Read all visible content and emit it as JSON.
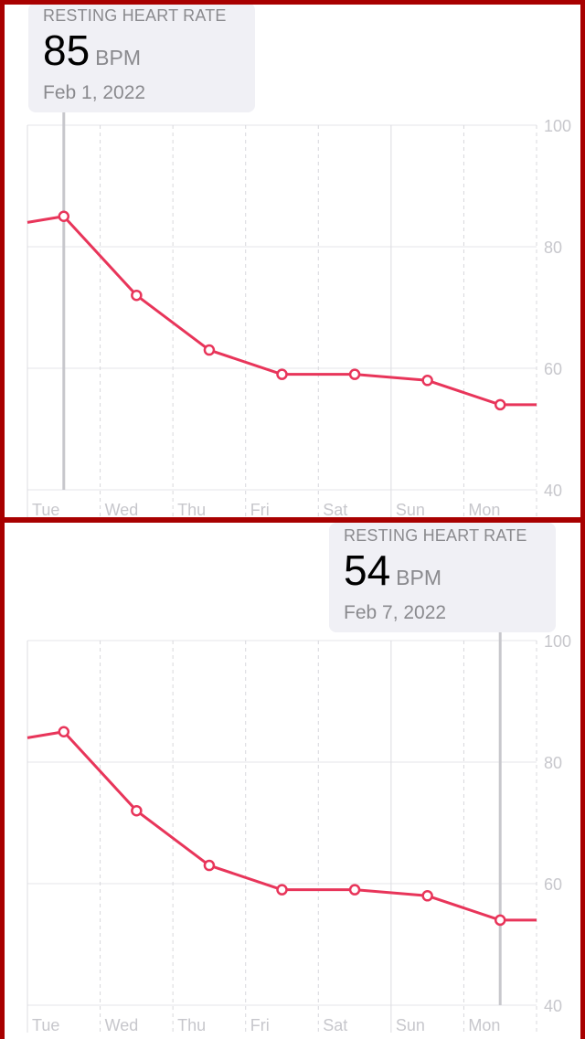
{
  "colors": {
    "line": "#e8355a",
    "grid": "#e5e5ea",
    "selection": "#c7c7cc",
    "frame": "#a80000",
    "callout_bg": "#f0f0f5"
  },
  "panels": [
    {
      "callout": {
        "title": "RESTING HEART RATE",
        "value": "85",
        "unit": "BPM",
        "date": "Feb 1, 2022"
      },
      "selected_index": 0
    },
    {
      "callout": {
        "title": "RESTING HEART RATE",
        "value": "54",
        "unit": "BPM",
        "date": "Feb 7, 2022"
      },
      "selected_index": 6
    }
  ],
  "chart_data": {
    "type": "line",
    "categories": [
      "Tue",
      "Wed",
      "Thu",
      "Fri",
      "Sat",
      "Sun",
      "Mon"
    ],
    "values": [
      85,
      72,
      63,
      59,
      59,
      58,
      54
    ],
    "edge_values": {
      "left": 84,
      "right": 54
    },
    "ylim": [
      40,
      100
    ],
    "yticks": [
      "100",
      "80",
      "60",
      "40"
    ],
    "grid": true,
    "unit": "BPM"
  }
}
